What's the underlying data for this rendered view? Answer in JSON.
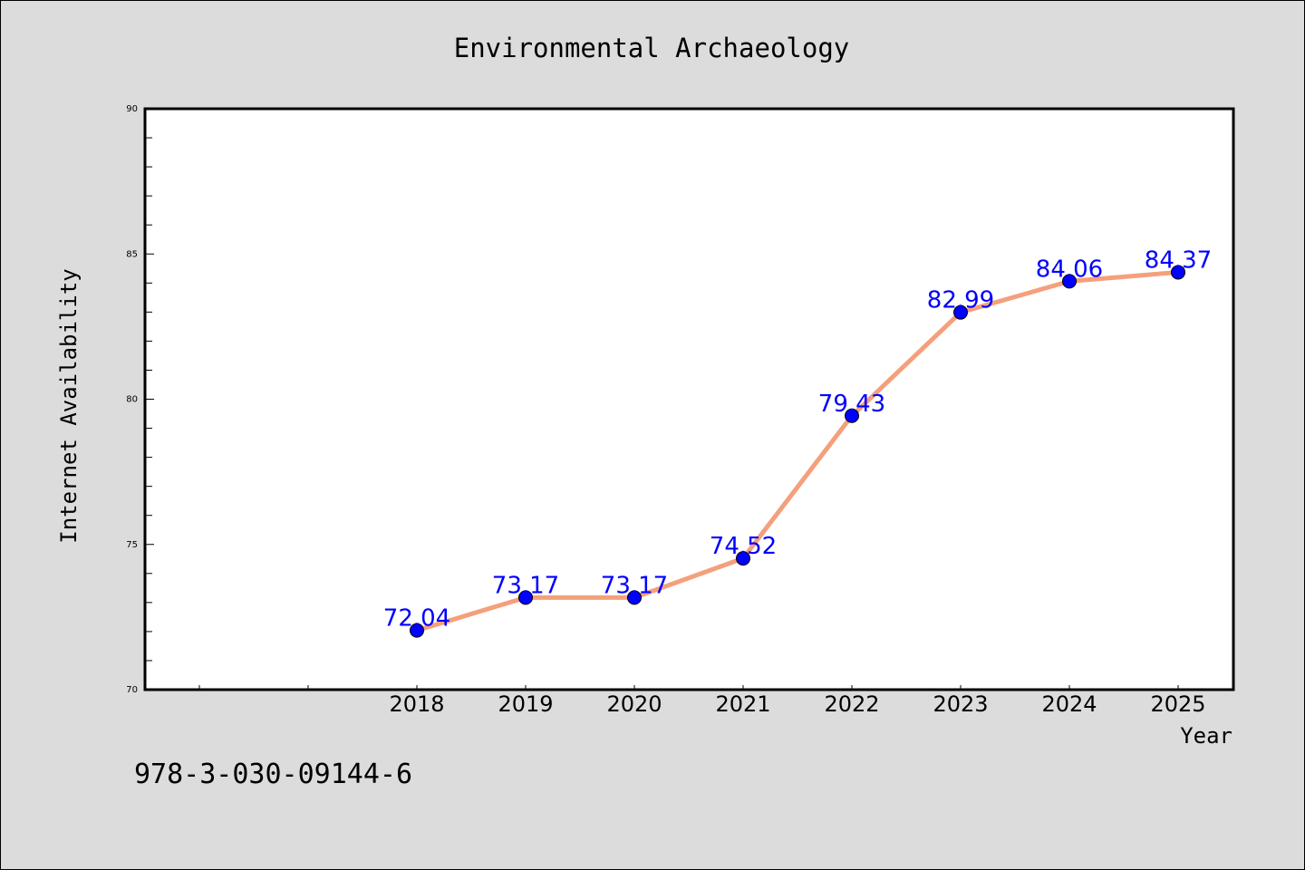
{
  "chart_data": {
    "type": "line",
    "title": "Environmental Archaeology",
    "xlabel": "Year",
    "ylabel": "Internet Availability",
    "x": [
      "2018",
      "2019",
      "2020",
      "2021",
      "2022",
      "2023",
      "2024",
      "2025"
    ],
    "series": [
      {
        "values": [
          72.04,
          73.17,
          73.17,
          74.52,
          79.43,
          82.99,
          84.06,
          84.37
        ],
        "labels": [
          "72.04",
          "73.17",
          "73.17",
          "74.52",
          "79.43",
          "82.99",
          "84.06",
          "84.37"
        ]
      }
    ],
    "ylim": [
      70,
      90
    ],
    "yticks": [
      "70",
      "75",
      "80",
      "85",
      "90"
    ],
    "grid": false,
    "legend": "none",
    "colors": {
      "line": "#f4a07c",
      "marker": "#0000ff",
      "data_label": "#0000ff",
      "background": "#dcdcdc",
      "plot_background": "#ffffff"
    }
  },
  "annotation": "978-3-030-09144-6"
}
